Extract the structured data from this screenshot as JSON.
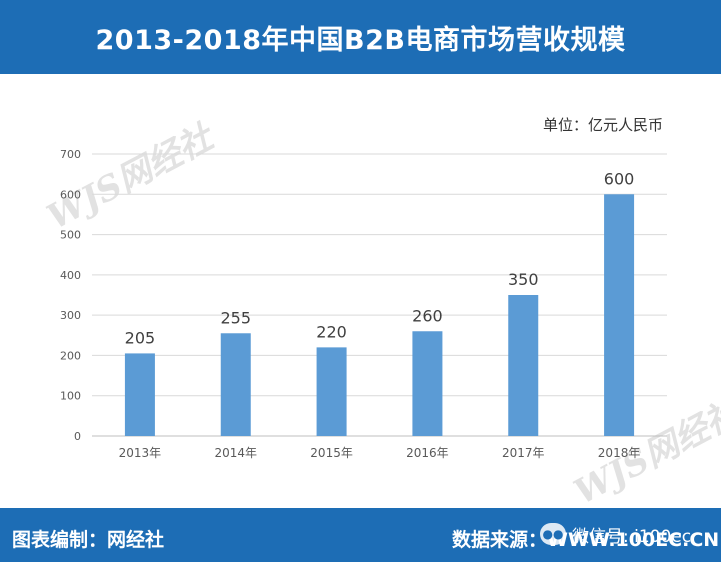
{
  "header": {
    "title": "2013-2018年中国B2B电商市场营收规模"
  },
  "unit_label": "单位：亿元人民币",
  "footer": {
    "left": "图表编制：网经社",
    "right": "数据来源：WWW.100EC.CN",
    "badge": "微信号: i100ec"
  },
  "watermark": {
    "logo": "WJS网经社",
    "url": "WWW.100EC.CN"
  },
  "colors": {
    "bar": "#5b9bd5",
    "header": "#1d6db5",
    "grid": "#d9d9d9"
  },
  "chart_data": {
    "type": "bar",
    "categories": [
      "2013年",
      "2014年",
      "2015年",
      "2016年",
      "2017年",
      "2018年"
    ],
    "values": [
      205,
      255,
      220,
      260,
      350,
      600
    ],
    "ylim": [
      0,
      700
    ],
    "yticks": [
      "0",
      "100",
      "200",
      "300",
      "400",
      "500",
      "600",
      "700"
    ],
    "data_labels": [
      "205",
      "255",
      "220",
      "260",
      "350",
      "600"
    ],
    "grid": true
  }
}
